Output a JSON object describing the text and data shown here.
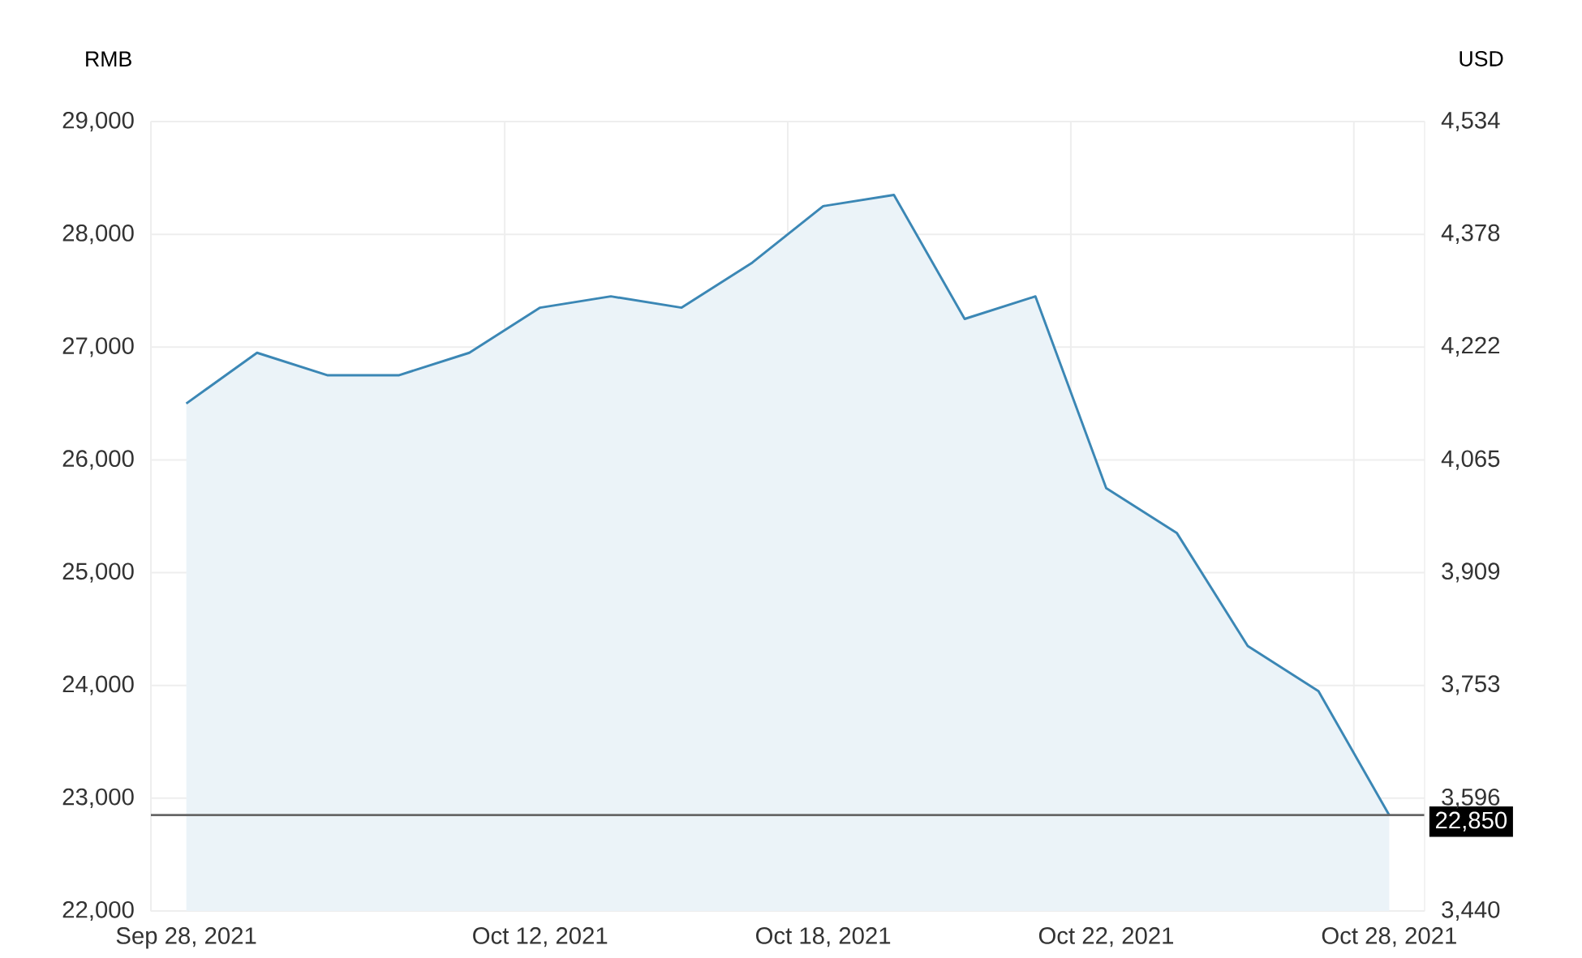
{
  "chart_data": {
    "type": "area",
    "ylabel": "RMB",
    "y2label": "USD",
    "categories": [
      "Sep 28, 2021",
      null,
      null,
      null,
      null,
      "Oct 12, 2021",
      null,
      null,
      null,
      "Oct 18, 2021",
      null,
      null,
      null,
      "Oct 22, 2021",
      null,
      null,
      null,
      "Oct 28, 2021"
    ],
    "series": [
      {
        "color": "#3b87b5",
        "values": [
          26500,
          26950,
          26750,
          26750,
          26950,
          27350,
          27450,
          27350,
          27750,
          28250,
          28350,
          27250,
          27450,
          25750,
          25350,
          24350,
          23950,
          22850
        ]
      }
    ],
    "ylim": [
      22000,
      29000
    ],
    "yticks": [
      {
        "value": 22000,
        "label": "22,000"
      },
      {
        "value": 23000,
        "label": "23,000"
      },
      {
        "value": 24000,
        "label": "24,000"
      },
      {
        "value": 25000,
        "label": "25,000"
      },
      {
        "value": 26000,
        "label": "26,000"
      },
      {
        "value": 27000,
        "label": "27,000"
      },
      {
        "value": 28000,
        "label": "28,000"
      },
      {
        "value": 29000,
        "label": "29,000"
      }
    ],
    "y2lim": [
      3440,
      4534
    ],
    "y2ticks": [
      {
        "value": 3440,
        "label": "3,440"
      },
      {
        "value": 3596,
        "label": "3,596"
      },
      {
        "value": 3753,
        "label": "3,753"
      },
      {
        "value": 3909,
        "label": "3,909"
      },
      {
        "value": 4065,
        "label": "4,065"
      },
      {
        "value": 4222,
        "label": "4,222"
      },
      {
        "value": 4378,
        "label": "4,378"
      },
      {
        "value": 4534,
        "label": "4,534"
      }
    ],
    "ref_lines": [
      {
        "axis": "y",
        "value": 22850,
        "label": "22,850",
        "color": "#666666"
      }
    ],
    "grid": true
  }
}
